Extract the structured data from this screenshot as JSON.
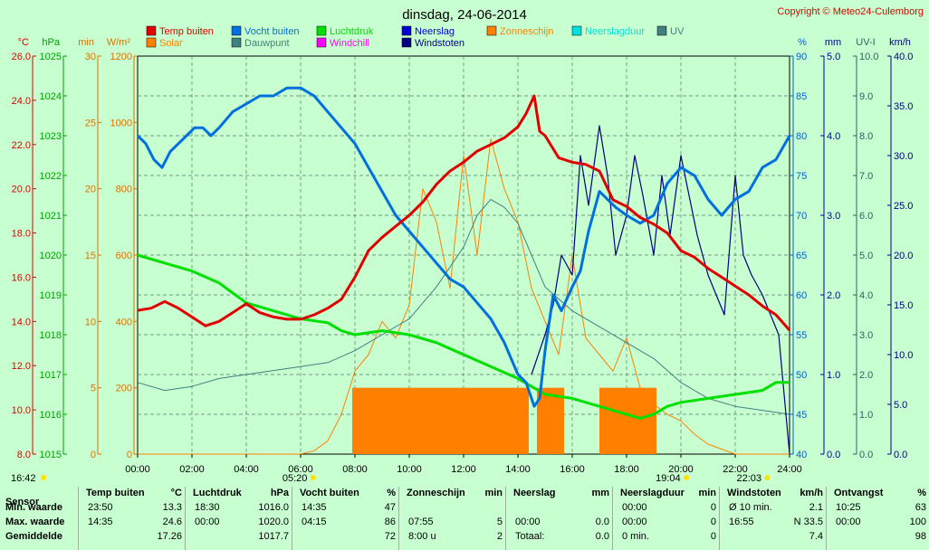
{
  "title": "dinsdag, 24-06-2014",
  "copyright": "Copyright © Meteo24-Culemborg",
  "legend": [
    {
      "label": "Temp buiten",
      "color": "#e00000"
    },
    {
      "label": "Vocht buiten",
      "color": "#0070e0"
    },
    {
      "label": "Luchtdruk",
      "color": "#00e000"
    },
    {
      "label": "Neerslag",
      "color": "#0000d0"
    },
    {
      "label": "Zonneschijn",
      "color": "#ff8000"
    },
    {
      "label": "Neerslagduur",
      "color": "#00e0e0"
    },
    {
      "label": "UV",
      "color": "#408080"
    },
    {
      "label": "Solar",
      "color": "#ff8000"
    },
    {
      "label": "Dauwpunt",
      "color": "#408080"
    },
    {
      "label": "Windchill",
      "color": "#ff00ff"
    },
    {
      "label": "Windstoten",
      "color": "#000080"
    }
  ],
  "axes_left": [
    {
      "unit": "°C",
      "color": "#e00000",
      "ticks": [
        "26.0",
        "24.0",
        "22.0",
        "20.0",
        "18.0",
        "16.0",
        "14.0",
        "12.0",
        "10.0",
        "8.0"
      ]
    },
    {
      "unit": "hPa",
      "color": "#00a000",
      "ticks": [
        "1025",
        "1024",
        "1023",
        "1022",
        "1021",
        "1020",
        "1019",
        "1018",
        "1017",
        "1016",
        "1015"
      ]
    },
    {
      "unit": "min",
      "color": "#e07000",
      "ticks": [
        "30",
        "25",
        "20",
        "15",
        "10",
        "5",
        "0"
      ]
    },
    {
      "unit": "W/m²",
      "color": "#e07000",
      "ticks": [
        "1200",
        "1000",
        "800",
        "600",
        "400",
        "200",
        "0"
      ]
    }
  ],
  "axes_right": [
    {
      "unit": "%",
      "color": "#0060d0",
      "ticks": [
        "90",
        "85",
        "80",
        "75",
        "70",
        "65",
        "60",
        "55",
        "50",
        "45",
        "40"
      ]
    },
    {
      "unit": "mm",
      "color": "#0000a0",
      "ticks": [
        "5.0",
        "4.0",
        "3.0",
        "2.0",
        "1.0",
        "0.0"
      ]
    },
    {
      "unit": "UV-I",
      "color": "#306060",
      "ticks": [
        "10.0",
        "9.0",
        "8.0",
        "7.0",
        "6.0",
        "5.0",
        "4.0",
        "3.0",
        "2.0",
        "1.0",
        "0.0"
      ]
    },
    {
      "unit": "km/h",
      "color": "#000080",
      "ticks": [
        "40.0",
        "35.0",
        "30.0",
        "25.0",
        "20.0",
        "15.0",
        "10.0",
        "5.0",
        "0.0"
      ]
    }
  ],
  "x_ticks": [
    "00:00",
    "02:00",
    "04:00",
    "06:00",
    "08:00",
    "10:00",
    "12:00",
    "14:00",
    "16:00",
    "18:00",
    "20:00",
    "22:00",
    "24:00"
  ],
  "markers": [
    {
      "text": "16:42",
      "hour": null,
      "pos": "left"
    },
    {
      "text": "05:20",
      "hour": 5.33
    },
    {
      "text": "19:04",
      "hour": 19.07
    },
    {
      "text": "22:03",
      "hour": 22.05
    }
  ],
  "chart_data": {
    "type": "line",
    "title": "dinsdag, 24-06-2014",
    "x_unit": "hour",
    "xlim": [
      0,
      24
    ],
    "series": [
      {
        "name": "Temp buiten",
        "axis": "°C",
        "ylim": [
          8,
          26
        ],
        "x": [
          0,
          0.5,
          1,
          1.5,
          2,
          2.5,
          3,
          3.5,
          4,
          4.5,
          5,
          5.5,
          6,
          6.5,
          7,
          7.5,
          8,
          8.5,
          9,
          9.5,
          10,
          10.5,
          11,
          11.5,
          12,
          12.5,
          13,
          13.5,
          14,
          14.3,
          14.6,
          14.8,
          15,
          15.5,
          16,
          16.5,
          17,
          17.5,
          18,
          18.5,
          19,
          19.5,
          20,
          20.5,
          21,
          21.5,
          22,
          22.5,
          23,
          23.5,
          24
        ],
        "values": [
          14.5,
          14.6,
          14.9,
          14.6,
          14.2,
          13.8,
          14.0,
          14.4,
          14.8,
          14.4,
          14.2,
          14.1,
          14.1,
          14.3,
          14.6,
          15.0,
          16.0,
          17.2,
          17.8,
          18.3,
          18.8,
          19.4,
          20.2,
          20.8,
          21.2,
          21.7,
          22.0,
          22.3,
          22.8,
          23.4,
          24.2,
          22.6,
          22.4,
          21.4,
          21.2,
          21.1,
          20.8,
          19.5,
          19.2,
          18.7,
          18.4,
          18.0,
          17.2,
          16.9,
          16.4,
          16.0,
          15.6,
          15.2,
          14.7,
          14.3,
          13.6
        ]
      },
      {
        "name": "Vocht buiten",
        "axis": "%",
        "ylim": [
          40,
          90
        ],
        "x": [
          0,
          0.3,
          0.6,
          0.9,
          1.2,
          1.5,
          1.8,
          2.1,
          2.4,
          2.7,
          3,
          3.5,
          4,
          4.5,
          5,
          5.5,
          6,
          6.5,
          7,
          7.5,
          8,
          8.5,
          9,
          9.5,
          10,
          10.5,
          11,
          11.5,
          12,
          12.5,
          13,
          13.5,
          14,
          14.3,
          14.6,
          14.8,
          15,
          15.3,
          15.6,
          16,
          16.3,
          16.6,
          17,
          17.3,
          17.6,
          18,
          18.5,
          19,
          19.5,
          20,
          20.5,
          21,
          21.5,
          22,
          22.5,
          23,
          23.5,
          24
        ],
        "values": [
          80,
          79,
          77,
          76,
          78,
          79,
          80,
          81,
          81,
          80,
          81,
          83,
          84,
          85,
          85,
          86,
          86,
          85,
          83,
          81,
          79,
          76,
          73,
          70,
          68,
          66,
          64,
          62,
          61,
          59,
          57,
          54,
          50,
          49,
          46,
          47,
          53,
          60,
          58,
          61,
          63,
          68,
          73,
          72,
          71,
          70,
          69,
          70,
          74,
          76,
          75,
          72,
          70,
          72,
          73,
          76,
          77,
          80
        ]
      },
      {
        "name": "Luchtdruk",
        "axis": "hPa",
        "ylim": [
          1015,
          1025
        ],
        "x": [
          0,
          1,
          2,
          3,
          4,
          5,
          6,
          7,
          7.5,
          8,
          9,
          10,
          11,
          12,
          13,
          14,
          14.5,
          15,
          16,
          17,
          18,
          18.5,
          19,
          19.5,
          20,
          21,
          22,
          23,
          23.5,
          24
        ],
        "values": [
          1020.0,
          1019.8,
          1019.6,
          1019.3,
          1018.8,
          1018.6,
          1018.4,
          1018.3,
          1018.1,
          1018.0,
          1018.1,
          1018.0,
          1017.8,
          1017.5,
          1017.2,
          1016.9,
          1016.7,
          1016.5,
          1016.4,
          1016.2,
          1016.0,
          1015.9,
          1016.0,
          1016.2,
          1016.3,
          1016.4,
          1016.5,
          1016.6,
          1016.8,
          1016.8
        ]
      },
      {
        "name": "Solar",
        "axis": "W/m²",
        "ylim": [
          0,
          1200
        ],
        "x": [
          0,
          6,
          6.5,
          7,
          7.5,
          8,
          8.5,
          9,
          9.5,
          10,
          10.5,
          11,
          11.5,
          12,
          12.5,
          13,
          13.5,
          14,
          14.5,
          15,
          15.5,
          16,
          16.5,
          17,
          17.5,
          18,
          18.5,
          19,
          19.5,
          20,
          20.5,
          21,
          22,
          23,
          24
        ],
        "values": [
          0,
          0,
          10,
          40,
          120,
          250,
          300,
          400,
          350,
          450,
          800,
          700,
          500,
          900,
          600,
          950,
          800,
          700,
          500,
          400,
          300,
          600,
          350,
          300,
          250,
          350,
          200,
          150,
          120,
          100,
          60,
          30,
          0,
          0,
          0
        ]
      },
      {
        "name": "Windstoten",
        "axis": "km/h",
        "ylim": [
          0,
          40
        ],
        "x": [
          14.5,
          15,
          15.3,
          15.6,
          16,
          16.3,
          16.6,
          17,
          17.3,
          17.6,
          18,
          18.3,
          18.6,
          19,
          19.3,
          19.6,
          20,
          20.3,
          20.6,
          21,
          21.3,
          21.6,
          22,
          22.3,
          22.6,
          23,
          23.3,
          23.6,
          24
        ],
        "values": [
          8,
          12,
          15,
          20,
          18,
          30,
          25,
          33,
          28,
          20,
          24,
          30,
          26,
          20,
          28,
          22,
          30,
          26,
          22,
          18,
          16,
          14,
          28,
          20,
          18,
          16,
          14,
          12,
          0
        ]
      },
      {
        "name": "UV",
        "axis": "UV-I",
        "ylim": [
          0,
          10
        ],
        "x": [
          0,
          1,
          2,
          3,
          4,
          5,
          6,
          7,
          8,
          9,
          10,
          11,
          12,
          12.5,
          13,
          13.5,
          14,
          15,
          16,
          17,
          18,
          19,
          20,
          21,
          22,
          23,
          24
        ],
        "values": [
          1.8,
          1.6,
          1.7,
          1.9,
          2.0,
          2.1,
          2.2,
          2.3,
          2.6,
          3.0,
          3.4,
          4.2,
          5.2,
          6.0,
          6.4,
          6.2,
          5.8,
          4.2,
          3.6,
          3.2,
          2.8,
          2.4,
          1.8,
          1.4,
          1.2,
          1.1,
          1.0
        ]
      }
    ],
    "sunshine_minutes_blocks": {
      "axis": "min",
      "value": 5,
      "ranges": [
        [
          7.9,
          14.4
        ],
        [
          14.7,
          15.7
        ],
        [
          17.0,
          19.1
        ]
      ]
    }
  },
  "stats": {
    "headers": {
      "sensor": "Sensor",
      "temp": "Temp buiten",
      "temp_u": "°C",
      "luchtdruk": "Luchtdruk",
      "luchtdruk_u": "hPa",
      "vocht": "Vocht buiten",
      "vocht_u": "%",
      "zon": "Zonneschijn",
      "zon_u": "min",
      "neerslag": "Neerslag",
      "neerslag_u": "mm",
      "nduur": "Neerslagduur",
      "nduur_u": "min",
      "wind": "Windstoten",
      "wind_u": "km/h",
      "ontvangst": "Ontvangst",
      "ontvangst_u": "%"
    },
    "rows": [
      {
        "label": "Min. waarde",
        "t_time": "23:50",
        "t_val": "13.3",
        "p_time": "18:30",
        "p_val": "1016.0",
        "h_time": "14:35",
        "h_val": "47",
        "z_time": "",
        "z_val": "",
        "n_time": "",
        "n_val": "",
        "d_time": "00:00",
        "d_val": "0",
        "w_time": "Ø 10 min.",
        "w_val": "2.1",
        "o_time": "10:25",
        "o_val": "63"
      },
      {
        "label": "Max. waarde",
        "t_time": "14:35",
        "t_val": "24.6",
        "p_time": "00:00",
        "p_val": "1020.0",
        "h_time": "04:15",
        "h_val": "86",
        "z_time": "07:55",
        "z_val": "5",
        "n_time": "00:00",
        "n_val": "0.0",
        "d_time": "00:00",
        "d_val": "0",
        "w_time": "16:55",
        "w_val": "N 33.5",
        "o_time": "00:00",
        "o_val": "100"
      },
      {
        "label": "Gemiddelde",
        "t_time": "",
        "t_val": "17.26",
        "p_time": "",
        "p_val": "1017.7",
        "h_time": "",
        "h_val": "72",
        "z_time": "8:00 u",
        "z_val": "2",
        "n_time": "Totaal:",
        "n_val": "0.0",
        "d_time": "0 min.",
        "d_val": "0",
        "w_time": "",
        "w_val": "7.4",
        "o_time": "",
        "o_val": "98"
      }
    ]
  }
}
